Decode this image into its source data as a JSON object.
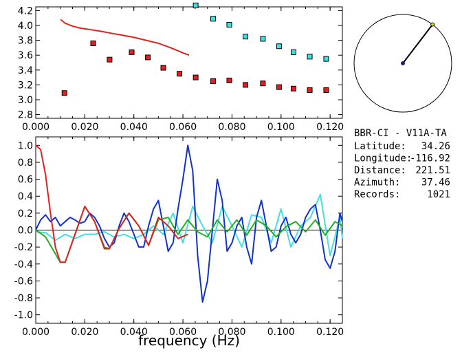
{
  "chart_data": [
    {
      "type": "scatter",
      "xlim": [
        0.0,
        0.125
      ],
      "ylim": [
        2.75,
        4.25
      ],
      "grid": false,
      "xticks": [
        "0.000",
        "0.020",
        "0.040",
        "0.060",
        "0.080",
        "0.100",
        "0.120"
      ],
      "yticks": [
        "2.8",
        "3.0",
        "3.2",
        "3.4",
        "3.6",
        "3.8",
        "4.0",
        "4.2"
      ],
      "series": [
        {
          "kind": "markers",
          "color": "#e02020",
          "x": [
            0.0117,
            0.0234,
            0.0301,
            0.0391,
            0.0457,
            0.052,
            0.0586,
            0.0652,
            0.0723,
            0.0789,
            0.0855,
            0.0926,
            0.0992,
            0.1051,
            0.1117,
            0.1184
          ],
          "y": [
            3.09,
            3.76,
            3.54,
            3.64,
            3.57,
            3.43,
            3.35,
            3.3,
            3.25,
            3.26,
            3.2,
            3.22,
            3.17,
            3.15,
            3.13,
            3.13
          ]
        },
        {
          "kind": "markers",
          "color": "#40e0e0",
          "x": [
            0.0652,
            0.0723,
            0.0789,
            0.0855,
            0.0926,
            0.0992,
            0.1051,
            0.1117,
            0.1184
          ],
          "y": [
            4.27,
            4.09,
            4.01,
            3.85,
            3.82,
            3.72,
            3.64,
            3.58,
            3.55
          ]
        },
        {
          "kind": "line",
          "color": "#e02020",
          "x": [
            0.0101,
            0.012,
            0.015,
            0.018,
            0.022,
            0.026,
            0.03,
            0.035,
            0.04,
            0.045,
            0.05,
            0.055,
            0.06,
            0.0625
          ],
          "y": [
            4.08,
            4.03,
            3.99,
            3.965,
            3.945,
            3.925,
            3.9,
            3.87,
            3.84,
            3.8,
            3.76,
            3.7,
            3.63,
            3.6
          ]
        }
      ]
    },
    {
      "type": "line",
      "xlabel": "frequency (Hz)",
      "xlim": [
        0.0,
        0.125
      ],
      "ylim": [
        -1.1,
        1.1
      ],
      "grid": false,
      "xticks": [
        "0.000",
        "0.020",
        "0.040",
        "0.060",
        "0.080",
        "0.100",
        "0.120"
      ],
      "yticks": [
        "1.0",
        "0.8",
        "0.6",
        "0.4",
        "0.2",
        "0.0",
        "-0.2",
        "-0.4",
        "-0.6",
        "-0.8",
        "-1.0"
      ],
      "series": [
        {
          "color": "#e02020",
          "x": [
            0.0,
            0.002,
            0.004,
            0.006,
            0.008,
            0.01,
            0.012,
            0.016,
            0.02,
            0.024,
            0.028,
            0.03,
            0.034,
            0.038,
            0.042,
            0.046,
            0.05,
            0.054,
            0.058,
            0.062
          ],
          "y": [
            1.0,
            0.95,
            0.65,
            0.2,
            -0.2,
            -0.38,
            -0.38,
            -0.05,
            0.28,
            0.1,
            -0.22,
            -0.22,
            0.02,
            0.2,
            0.05,
            -0.18,
            0.15,
            0.05,
            -0.1,
            -0.05
          ]
        },
        {
          "color": "#20b020",
          "x": [
            0.0,
            0.004,
            0.008,
            0.01,
            0.012,
            0.016,
            0.02,
            0.024,
            0.028,
            0.03,
            0.034,
            0.038,
            0.042,
            0.046,
            0.05,
            0.054,
            0.058,
            0.062,
            0.066,
            0.07,
            0.074,
            0.078,
            0.082,
            0.086,
            0.09,
            0.094,
            0.098,
            0.102,
            0.106,
            0.11,
            0.114,
            0.118,
            0.122,
            0.125
          ],
          "y": [
            0.0,
            -0.08,
            -0.28,
            -0.38,
            -0.38,
            -0.05,
            0.28,
            0.1,
            -0.2,
            -0.22,
            0.02,
            0.2,
            0.05,
            -0.18,
            0.12,
            0.15,
            -0.05,
            0.12,
            -0.02,
            -0.08,
            0.12,
            -0.02,
            0.12,
            -0.06,
            0.12,
            0.05,
            -0.08,
            0.04,
            0.1,
            -0.02,
            0.12,
            -0.06,
            0.1,
            0.05
          ]
        },
        {
          "color": "#1030d0",
          "x": [
            0.0,
            0.002,
            0.004,
            0.006,
            0.008,
            0.01,
            0.012,
            0.014,
            0.016,
            0.018,
            0.02,
            0.022,
            0.024,
            0.026,
            0.028,
            0.03,
            0.032,
            0.034,
            0.036,
            0.038,
            0.04,
            0.042,
            0.044,
            0.046,
            0.048,
            0.05,
            0.052,
            0.054,
            0.056,
            0.058,
            0.06,
            0.062,
            0.064,
            0.066,
            0.068,
            0.07,
            0.072,
            0.074,
            0.076,
            0.078,
            0.08,
            0.082,
            0.084,
            0.086,
            0.088,
            0.09,
            0.092,
            0.094,
            0.096,
            0.098,
            0.1,
            0.102,
            0.104,
            0.106,
            0.108,
            0.11,
            0.112,
            0.114,
            0.116,
            0.118,
            0.12,
            0.122,
            0.124,
            0.125
          ],
          "y": [
            0.0,
            0.12,
            0.18,
            0.1,
            0.15,
            0.05,
            0.1,
            0.15,
            0.12,
            0.08,
            0.1,
            0.2,
            0.15,
            0.05,
            -0.1,
            -0.2,
            -0.15,
            0.05,
            0.2,
            0.1,
            -0.05,
            -0.2,
            -0.2,
            0.05,
            0.25,
            0.35,
            0.05,
            -0.25,
            -0.15,
            0.25,
            0.6,
            1.0,
            0.7,
            -0.3,
            -0.85,
            -0.6,
            0.0,
            0.6,
            0.35,
            -0.25,
            -0.15,
            0.05,
            0.15,
            -0.2,
            -0.4,
            0.15,
            0.35,
            0.05,
            -0.25,
            -0.2,
            0.05,
            0.15,
            -0.05,
            -0.15,
            -0.05,
            0.15,
            0.25,
            0.3,
            0.0,
            -0.35,
            -0.45,
            -0.25,
            0.2,
            0.1
          ]
        },
        {
          "color": "#40e0e0",
          "x": [
            0.0,
            0.004,
            0.008,
            0.012,
            0.016,
            0.02,
            0.024,
            0.028,
            0.032,
            0.036,
            0.04,
            0.044,
            0.048,
            0.052,
            0.056,
            0.06,
            0.064,
            0.068,
            0.072,
            0.076,
            0.08,
            0.084,
            0.088,
            0.092,
            0.096,
            0.1,
            0.104,
            0.108,
            0.112,
            0.116,
            0.12,
            0.124,
            0.125
          ],
          "y": [
            -0.02,
            -0.03,
            -0.12,
            -0.05,
            -0.1,
            -0.05,
            -0.05,
            -0.02,
            -0.08,
            -0.05,
            -0.1,
            -0.05,
            0.05,
            -0.05,
            0.2,
            -0.15,
            0.28,
            0.05,
            -0.15,
            0.28,
            0.05,
            -0.2,
            0.18,
            0.15,
            -0.15,
            0.25,
            -0.2,
            0.05,
            0.15,
            0.42,
            -0.3,
            0.15,
            -0.1
          ]
        }
      ]
    }
  ],
  "info": {
    "station": "BBR-CI  -  V11A-TA",
    "rows": [
      {
        "label": "Latitude:",
        "value": "34.26"
      },
      {
        "label": "Longitude:",
        "value": "-116.92"
      },
      {
        "label": "Distance:",
        "value": "221.51"
      },
      {
        "label": "Azimuth:",
        "value": "37.46"
      },
      {
        "label": "Records:",
        "value": "1021"
      }
    ]
  },
  "azimuth_dial": {
    "azimuth_deg": 37.46,
    "colors": {
      "line": "#000000",
      "center": "#202080",
      "tip": "#e0d040"
    }
  }
}
